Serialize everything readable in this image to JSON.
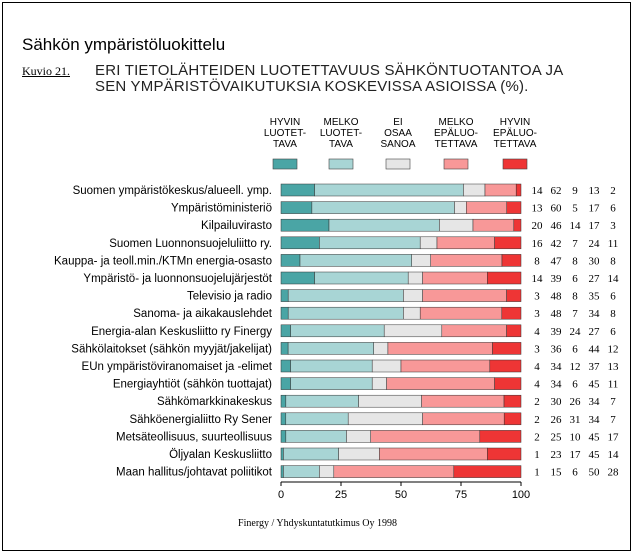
{
  "page": {
    "heading": "Sähkön ympäristöluokittelu",
    "figure_label": "Kuvio 21.",
    "subtitle_line1": "ERI TIETOLÄHTEIDEN LUOTETTAVUUS SÄHKÖNTUOTANTOA JA",
    "subtitle_line2": "SEN YMPÄRISTÖVAIKUTUKSIA KOSKEVISSA ASIOISSA (%).",
    "source": "Finergy / Yhdyskuntatutkimus Oy 1998"
  },
  "colors": [
    "#4aa5a5",
    "#a8d5d5",
    "#e6e6e6",
    "#f89898",
    "#ee3535"
  ],
  "chart_data": {
    "type": "bar",
    "orientation": "horizontal",
    "stacked": true,
    "title": "ERI TIETOLÄHTEIDEN LUOTETTAVUUS SÄHKÖNTUOTANTOA JA SEN YMPÄRISTÖVAIKUTUKSIA KOSKEVISSA ASIOISSA (%).",
    "xlim": [
      0,
      100
    ],
    "xticks": [
      "0",
      "25",
      "50",
      "75",
      "100"
    ],
    "legend_position": "top",
    "series": [
      {
        "name": "HYVIN LUOTETTAVA",
        "legend_lines": [
          "HYVIN",
          "LUOTET-",
          "TAVA"
        ]
      },
      {
        "name": "MELKO LUOTETTAVA",
        "legend_lines": [
          "MELKO",
          "LUOTET-",
          "TAVA"
        ]
      },
      {
        "name": "EI OSAA SANOA",
        "legend_lines": [
          "EI",
          "OSAA",
          "SANOA"
        ]
      },
      {
        "name": "MELKO EPÄLUOTETTAVA",
        "legend_lines": [
          "MELKO",
          "EPÄLUO-",
          "TETTAVA"
        ]
      },
      {
        "name": "HYVIN EPÄLUOTETTAVA",
        "legend_lines": [
          "HYVIN",
          "EPÄLUO-",
          "TETTAVA"
        ]
      }
    ],
    "categories": [
      {
        "label": "Suomen ympäristökeskus/alueell. ymp.",
        "values": [
          14,
          62,
          9,
          13,
          2
        ]
      },
      {
        "label": "Ympäristöministeriö",
        "values": [
          13,
          60,
          5,
          17,
          6
        ]
      },
      {
        "label": "Kilpailuvirasto",
        "values": [
          20,
          46,
          14,
          17,
          3
        ]
      },
      {
        "label": "Suomen Luonnonsuojeluliitto ry.",
        "values": [
          16,
          42,
          7,
          24,
          11
        ]
      },
      {
        "label": "Kauppa- ja teoll.min./KTMn energia-osasto",
        "values": [
          8,
          47,
          8,
          30,
          8
        ]
      },
      {
        "label": "Ympäristö- ja luonnonsuojelujärjestöt",
        "values": [
          14,
          39,
          6,
          27,
          14
        ]
      },
      {
        "label": "Televisio ja radio",
        "values": [
          3,
          48,
          8,
          35,
          6
        ]
      },
      {
        "label": "Sanoma- ja aikakauslehdet",
        "values": [
          3,
          48,
          7,
          34,
          8
        ]
      },
      {
        "label": "Energia-alan Keskusliitto ry Finergy",
        "values": [
          4,
          39,
          24,
          27,
          6
        ]
      },
      {
        "label": "Sähkölaitokset (sähkön myyjät/jakelijat)",
        "values": [
          3,
          36,
          6,
          44,
          12
        ]
      },
      {
        "label": "EUn ympäristöviranomaiset ja -elimet",
        "values": [
          4,
          34,
          12,
          37,
          13
        ]
      },
      {
        "label": "Energiayhtiöt (sähkön tuottajat)",
        "values": [
          4,
          34,
          6,
          45,
          11
        ]
      },
      {
        "label": "Sähkömarkkinakeskus",
        "values": [
          2,
          30,
          26,
          34,
          7
        ]
      },
      {
        "label": "Sähköenergialiitto Ry Sener",
        "values": [
          2,
          26,
          31,
          34,
          7
        ]
      },
      {
        "label": "Metsäteollisuus, suurteollisuus",
        "values": [
          2,
          25,
          10,
          45,
          17
        ]
      },
      {
        "label": "Öljyalan Keskusliitto",
        "values": [
          1,
          23,
          17,
          45,
          14
        ]
      },
      {
        "label": "Maan hallitus/johtavat poliitikot",
        "values": [
          1,
          15,
          6,
          50,
          28
        ]
      }
    ]
  }
}
